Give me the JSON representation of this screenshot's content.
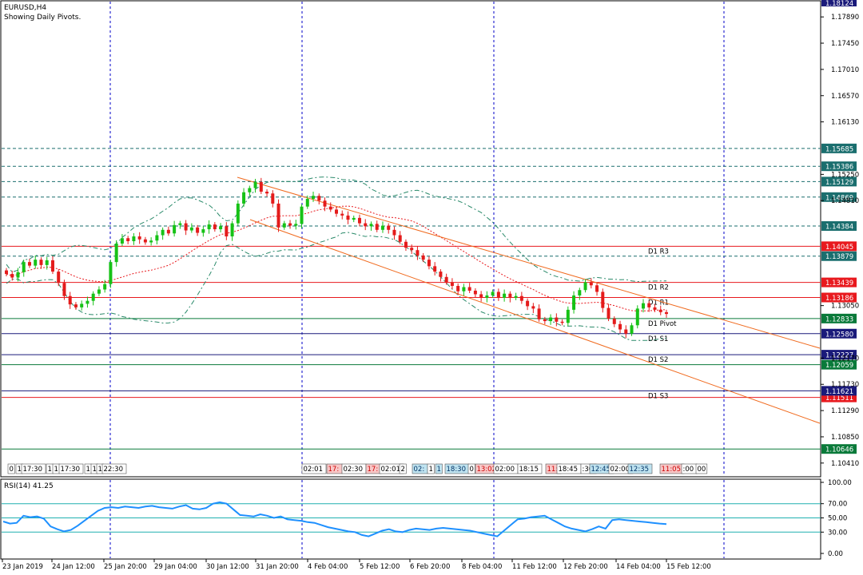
{
  "window": {
    "symbol_timeframe": "EURUSD,H4",
    "indicator_note": "Showing Daily Pivots."
  },
  "colors": {
    "bull": "#16c216",
    "bear": "#e41b1b",
    "grid": "#0000c8",
    "channel": "#f06a1e",
    "bollinger": "#2a8a6a",
    "pivot_red": "#e8191e",
    "pivot_green": "#0a7a3a",
    "pivot_navy": "#1a1a7a",
    "rsi": "#1e90ff",
    "rsi_level": "#20b0b0"
  },
  "chart_data": [
    {
      "type": "candlestick",
      "title": "EURUSD,H4",
      "ylim": [
        1.1018,
        1.1812
      ],
      "price_ticks": [
        "1.17890",
        "1.17450",
        "1.17010",
        "1.16570",
        "1.16130",
        "1.15250",
        "1.14810",
        "1.13050",
        "1.12170",
        "1.11730",
        "1.11290",
        "1.10850",
        "1.10410"
      ],
      "x_ticks": [
        "23 Jan 2019",
        "24 Jan 12:00",
        "25 Jan 20:00",
        "29 Jan 04:00",
        "30 Jan 12:00",
        "31 Jan 20:00",
        "4 Feb 04:00",
        "5 Feb 12:00",
        "6 Feb 20:00",
        "8 Feb 04:00",
        "11 Feb 12:00",
        "12 Feb 20:00",
        "14 Feb 04:00",
        "15 Feb 12:00"
      ],
      "candles_close": [
        1.1358,
        1.1352,
        1.1361,
        1.1378,
        1.1372,
        1.1382,
        1.1373,
        1.1381,
        1.1362,
        1.1343,
        1.1321,
        1.1307,
        1.1302,
        1.1308,
        1.1313,
        1.1325,
        1.1332,
        1.1341,
        1.1378,
        1.1409,
        1.1418,
        1.1413,
        1.1421,
        1.1416,
        1.1411,
        1.1414,
        1.1423,
        1.1432,
        1.1426,
        1.144,
        1.1443,
        1.1431,
        1.1436,
        1.1427,
        1.1433,
        1.1441,
        1.1433,
        1.1438,
        1.1421,
        1.1443,
        1.1476,
        1.1495,
        1.1502,
        1.1512,
        1.1496,
        1.1493,
        1.1476,
        1.1436,
        1.1443,
        1.1439,
        1.1442,
        1.1471,
        1.1484,
        1.1489,
        1.1481,
        1.1471,
        1.1466,
        1.1459,
        1.1456,
        1.1449,
        1.1452,
        1.1443,
        1.1438,
        1.1442,
        1.1432,
        1.1439,
        1.1432,
        1.1423,
        1.1412,
        1.1402,
        1.1398,
        1.1389,
        1.1382,
        1.1371,
        1.1362,
        1.1353,
        1.1344,
        1.1338,
        1.1329,
        1.1336,
        1.133,
        1.1324,
        1.1318,
        1.1322,
        1.1328,
        1.1318,
        1.1325,
        1.1318,
        1.1321,
        1.1313,
        1.1304,
        1.13,
        1.1282,
        1.1279,
        1.1285,
        1.1278,
        1.1276,
        1.1298,
        1.1322,
        1.1331,
        1.1344,
        1.1339,
        1.1328,
        1.1301,
        1.1283,
        1.1274,
        1.1265,
        1.1258,
        1.1272,
        1.13,
        1.1309,
        1.1302,
        1.1298,
        1.1294,
        1.1291
      ],
      "pivot_levels": [
        {
          "label": "D1 R3",
          "value": 1.14045,
          "tag": "1.14045",
          "color": "red"
        },
        {
          "label": "D1 R2",
          "value": 1.13439,
          "tag": "1.13439",
          "color": "red"
        },
        {
          "label": "D1 R1",
          "value": 1.13186,
          "tag": "1.13186",
          "color": "red"
        },
        {
          "label": "D1 Pivot",
          "value": 1.12833,
          "tag": "1.12833",
          "color": "green"
        },
        {
          "label": "D1 S1",
          "value": 1.1258,
          "tag": "1.12580",
          "color": "navy"
        },
        {
          "label": "D1 S2",
          "value": 1.12227,
          "tag": "1.12227",
          "color": "navy"
        },
        {
          "label": "D1 S3",
          "value": 1.11621,
          "tag": "1.11621",
          "color": "navy"
        }
      ],
      "extra_levels": [
        {
          "value": 1.15685,
          "tag": "1.15685",
          "color": "teal",
          "dash": true
        },
        {
          "value": 1.15386,
          "tag": "1.15386",
          "color": "teal",
          "dash": true
        },
        {
          "value": 1.15129,
          "tag": "1.15129",
          "color": "teal",
          "dash": true
        },
        {
          "value": 1.14869,
          "tag": "1.14869",
          "color": "teal",
          "dash": true
        },
        {
          "value": 1.14384,
          "tag": "1.14384",
          "color": "teal",
          "dash": true
        },
        {
          "value": 1.13879,
          "tag": "1.13879",
          "color": "teal",
          "dash": true
        },
        {
          "value": 1.12059,
          "tag": "1.12059",
          "color": "green",
          "dash": false
        },
        {
          "value": 1.11511,
          "tag": "1.11511",
          "color": "red",
          "dash": false
        },
        {
          "value": 1.10646,
          "tag": "1.10646",
          "color": "green",
          "dash": false
        }
      ],
      "top_tag": "1.18124",
      "time_labels": [
        {
          "text": "0",
          "style": "plain"
        },
        {
          "text": "1",
          "style": "plain"
        },
        {
          "text": "17:30",
          "style": "plain"
        },
        {
          "text": "1",
          "style": "plain"
        },
        {
          "text": "1",
          "style": "plain"
        },
        {
          "text": "17:30",
          "style": "plain"
        },
        {
          "text": "1",
          "style": "plain"
        },
        {
          "text": "1",
          "style": "plain"
        },
        {
          "text": "1",
          "style": "plain"
        },
        {
          "text": "22:30",
          "style": "plain"
        },
        {
          "text": "02:01",
          "style": "plain"
        },
        {
          "text": "17:",
          "style": "red"
        },
        {
          "text": "02:30",
          "style": "plain"
        },
        {
          "text": "17:",
          "style": "red"
        },
        {
          "text": "02:01",
          "style": "plain"
        },
        {
          "text": "2",
          "style": "plain"
        },
        {
          "text": "02:",
          "style": "blue"
        },
        {
          "text": "1",
          "style": "plain"
        },
        {
          "text": "1",
          "style": "blue"
        },
        {
          "text": "18:30",
          "style": "blue"
        },
        {
          "text": "0",
          "style": "plain"
        },
        {
          "text": "13:02",
          "style": "red"
        },
        {
          "text": "02:00",
          "style": "plain"
        },
        {
          "text": "18:15",
          "style": "plain"
        },
        {
          "text": "11:",
          "style": "red"
        },
        {
          "text": "18:45",
          "style": "plain"
        },
        {
          "text": ":30",
          "style": "plain"
        },
        {
          "text": "12:45",
          "style": "blue"
        },
        {
          "text": "02:00",
          "style": "plain"
        },
        {
          "text": "12:35",
          "style": "blue"
        },
        {
          "text": "11:05",
          "style": "red"
        },
        {
          "text": ":00",
          "style": "plain"
        },
        {
          "text": "00",
          "style": "plain"
        }
      ]
    },
    {
      "type": "line",
      "title": "RSI(14) 41.25",
      "ylim": [
        0,
        100
      ],
      "y_ticks": [
        "100.00",
        "70.00",
        "50.00",
        "30.00",
        "0.00"
      ],
      "levels": [
        70,
        50,
        30
      ],
      "series": [
        {
          "values": [
            45,
            42,
            43,
            53,
            51,
            52,
            49,
            38,
            34,
            31,
            33,
            39,
            46,
            53,
            60,
            64,
            65,
            64,
            66,
            65,
            64,
            66,
            67,
            65,
            64,
            63,
            66,
            68,
            63,
            62,
            64,
            70,
            72,
            70,
            62,
            54,
            53,
            52,
            55,
            53,
            50,
            52,
            48,
            47,
            46,
            44,
            43,
            40,
            37,
            35,
            33,
            31,
            30,
            26,
            24,
            28,
            32,
            34,
            31,
            30,
            33,
            35,
            34,
            33,
            35,
            36,
            35,
            34,
            33,
            32,
            30,
            28,
            26,
            24,
            32,
            40,
            48,
            49,
            51,
            52,
            53,
            48,
            43,
            38,
            35,
            33,
            31,
            34,
            38,
            35,
            47,
            48,
            47,
            46,
            45,
            44,
            43,
            42,
            41.25
          ]
        }
      ]
    }
  ]
}
